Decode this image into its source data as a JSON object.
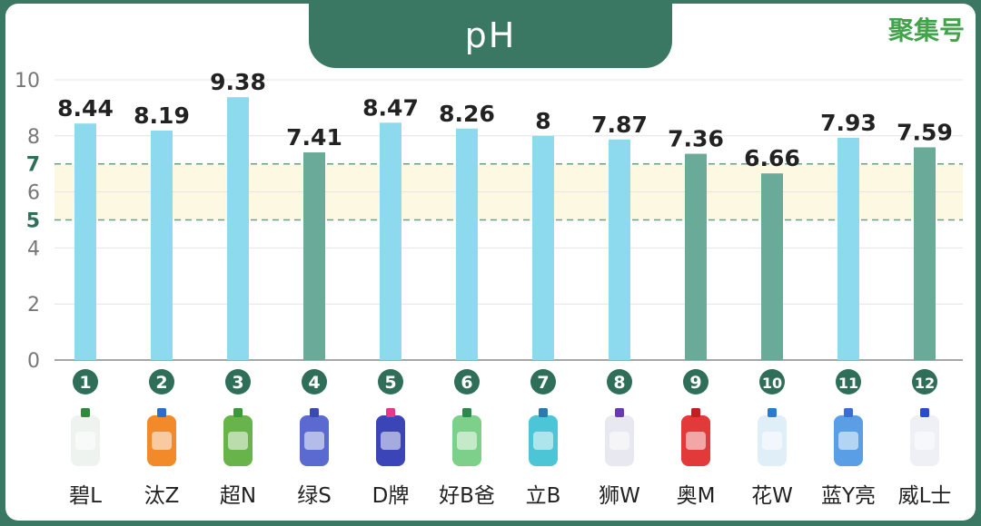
{
  "chart_data": {
    "type": "bar",
    "title": "pH",
    "categories": [
      "碧L",
      "汰Z",
      "超N",
      "绿S",
      "D牌",
      "好B爸",
      "立B",
      "狮W",
      "奥M",
      "花W",
      "蓝Y亮",
      "威L士"
    ],
    "index_labels": [
      "1",
      "2",
      "3",
      "4",
      "5",
      "6",
      "7",
      "8",
      "9",
      "10",
      "11",
      "12"
    ],
    "values": [
      8.44,
      8.19,
      9.38,
      7.41,
      8.47,
      8.26,
      8,
      7.87,
      7.36,
      6.66,
      7.93,
      7.59
    ],
    "value_labels": [
      "8.44",
      "8.19",
      "9.38",
      "7.41",
      "8.47",
      "8.26",
      "8",
      "7.87",
      "7.36",
      "6.66",
      "7.93",
      "7.59"
    ],
    "bar_colors": [
      "#8dd9ee",
      "#8dd9ee",
      "#8dd9ee",
      "#6aaa98",
      "#8dd9ee",
      "#8dd9ee",
      "#8dd9ee",
      "#8dd9ee",
      "#6aaa98",
      "#6aaa98",
      "#8dd9ee",
      "#6aaa98"
    ],
    "ylim": [
      0,
      10
    ],
    "yticks": [
      "0",
      "2",
      "4",
      "5",
      "6",
      "7",
      "8",
      "10"
    ],
    "highlight_band": [
      5,
      7
    ],
    "band_color": "#fdf8e1",
    "grid": true,
    "xlabel": "",
    "ylabel": ""
  },
  "watermark": "聚集号",
  "colors": {
    "frame": "#3b7864",
    "index_circle": "#2f6e58"
  }
}
